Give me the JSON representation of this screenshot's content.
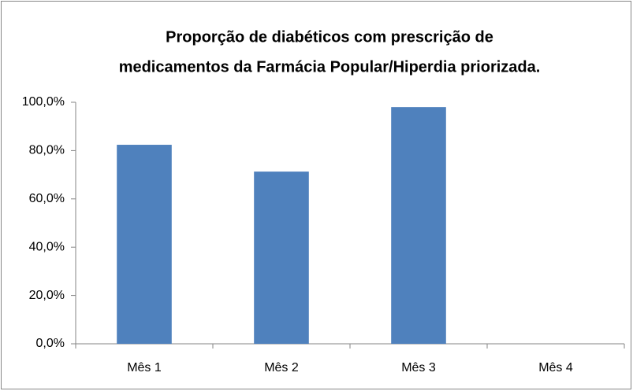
{
  "chart_data": {
    "type": "bar",
    "title": [
      "Proporção de diabéticos com prescrição de",
      "medicamentos da Farmácia Popular/Hiperdia priorizada."
    ],
    "categories": [
      "Mês 1",
      "Mês 2",
      "Mês 3",
      "Mês 4"
    ],
    "values": [
      82.4,
      71.3,
      98.0,
      0
    ],
    "color": "#4f81bd",
    "ylim": [
      0,
      100
    ],
    "yticks": [
      {
        "value": 0,
        "label": "0,0%"
      },
      {
        "value": 20,
        "label": "20,0%"
      },
      {
        "value": 40,
        "label": "40,0%"
      },
      {
        "value": 60,
        "label": "60,0%"
      },
      {
        "value": 80,
        "label": "80,0%"
      },
      {
        "value": 100,
        "label": "100,0%"
      }
    ],
    "grid": false
  }
}
